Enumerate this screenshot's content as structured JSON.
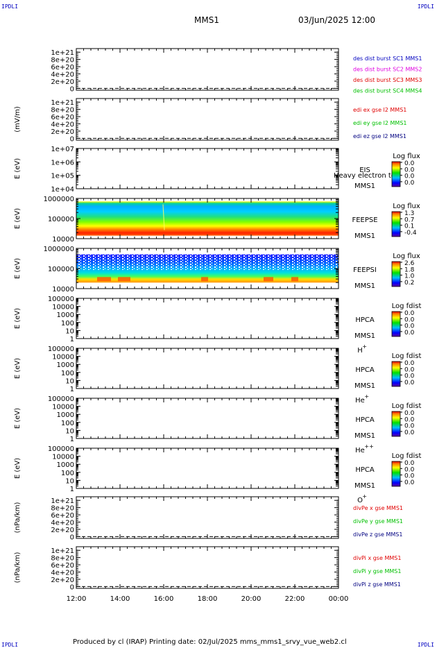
{
  "corners": {
    "tl": "IPDLI",
    "tr": "IPDLI",
    "bl": "IPDLI",
    "br": "IPDLI"
  },
  "header": {
    "spacecraft": "MMS1",
    "datetime": "03/Jun/2025 12:00"
  },
  "footer": {
    "text": "Produced by cl (IRAP)   Printing date: 02/Jul/2025   mms_mms1_srvy_vue_web2.cl"
  },
  "colors": {
    "blue": "#0000c0",
    "magenta": "#e000e0",
    "red": "#e00000",
    "green": "#00c000",
    "navy": "#000080"
  },
  "chart_data": {
    "type": "heatmap",
    "x_ticks": [
      "12:00",
      "14:00",
      "16:00",
      "18:00",
      "20:00",
      "22:00",
      "00:00"
    ],
    "panels": [
      {
        "id": "dist",
        "kind": "line",
        "ylabel": "",
        "yticks": [
          {
            "v": 0,
            "t": "0"
          },
          {
            "v": 0.2,
            "t": "2e+20"
          },
          {
            "v": 0.4,
            "t": "4e+20"
          },
          {
            "v": 0.6,
            "t": "6e+20"
          },
          {
            "v": 0.8,
            "t": "8e+20"
          },
          {
            "v": 1.0,
            "t": "1e+21"
          }
        ],
        "ylim": [
          -0.05,
          1.1
        ],
        "dashed_zero": true,
        "legend": [
          {
            "text": "des dist burst SC1 MMS1",
            "color": "#0000c0"
          },
          {
            "text": "des dist burst SC2 MMS2",
            "color": "#e000e0"
          },
          {
            "text": "des dist burst SC3 MMS3",
            "color": "#e00000"
          },
          {
            "text": "des dist burst SC4 MMS4",
            "color": "#00c000"
          }
        ]
      },
      {
        "id": "edi",
        "kind": "line",
        "ylabel": "(mV/m)",
        "yticks": [
          {
            "v": 0,
            "t": "0"
          },
          {
            "v": 0.2,
            "t": "2e+20"
          },
          {
            "v": 0.4,
            "t": "4e+20"
          },
          {
            "v": 0.6,
            "t": "6e+20"
          },
          {
            "v": 0.8,
            "t": "8e+20"
          },
          {
            "v": 1.0,
            "t": "1e+21"
          }
        ],
        "ylim": [
          -0.05,
          1.1
        ],
        "dashed_zero": true,
        "legend": [
          {
            "text": "edi ex gse l2 MMS1",
            "color": "#e00000"
          },
          {
            "text": "edi ey gse l2 MMS1",
            "color": "#00c000"
          },
          {
            "text": "edi ez gse l2 MMS1",
            "color": "#000080"
          }
        ]
      },
      {
        "id": "eis",
        "kind": "spec",
        "ylabel": "E (eV)",
        "yticks": [
          {
            "v": 4,
            "t": "1e+04"
          },
          {
            "v": 5,
            "t": "1e+05"
          },
          {
            "v": 6,
            "t": "1e+06"
          },
          {
            "v": 7,
            "t": "1e+07"
          }
        ],
        "ylim": [
          4,
          7
        ],
        "labels": [
          "EIS",
          "MMS1"
        ],
        "overlay": "Heavy electron to",
        "cbar_title": "Log flux",
        "cbar_ticks": [
          "0.0",
          "0.0",
          "0.0",
          "0.0"
        ]
      },
      {
        "id": "feepse",
        "kind": "spec",
        "ylabel": "E (eV)",
        "yticks": [
          {
            "v": 4,
            "t": "10000"
          },
          {
            "v": 5,
            "t": "100000"
          },
          {
            "v": 6,
            "t": "1000000"
          }
        ],
        "ylim": [
          4,
          6
        ],
        "labels": [
          "FEEPSE",
          "MMS1"
        ],
        "cbar_title": "Log flux",
        "cbar_ticks": [
          "1.3",
          "0.7",
          "0.1",
          "-0.4"
        ],
        "fill": "feepse"
      },
      {
        "id": "feepsi",
        "kind": "spec",
        "ylabel": "E (eV)",
        "yticks": [
          {
            "v": 4,
            "t": "10000"
          },
          {
            "v": 5,
            "t": "100000"
          },
          {
            "v": 6,
            "t": "1000000"
          }
        ],
        "ylim": [
          4,
          6
        ],
        "labels": [
          "FEEPSI",
          "MMS1"
        ],
        "cbar_title": "Log flux",
        "cbar_ticks": [
          "2.6",
          "1.8",
          "1.0",
          "0.2"
        ],
        "fill": "feepsi"
      },
      {
        "id": "hpca_h",
        "kind": "spec",
        "ylabel": "E (eV)",
        "yticks": [
          {
            "v": 0,
            "t": "1"
          },
          {
            "v": 1,
            "t": "10"
          },
          {
            "v": 2,
            "t": "100"
          },
          {
            "v": 3,
            "t": "1000"
          },
          {
            "v": 4,
            "t": "10000"
          },
          {
            "v": 5,
            "t": "100000"
          }
        ],
        "ylim": [
          0,
          5
        ],
        "labels": [
          "HPCA",
          "MMS1"
        ],
        "species": "H",
        "charge": "+",
        "cbar_title": "Log fdist",
        "cbar_ticks": [
          "0.0",
          "0.0",
          "0.0",
          "0.0"
        ]
      },
      {
        "id": "hpca_he",
        "kind": "spec",
        "ylabel": "E (eV)",
        "yticks": [
          {
            "v": 0,
            "t": "1"
          },
          {
            "v": 1,
            "t": "10"
          },
          {
            "v": 2,
            "t": "100"
          },
          {
            "v": 3,
            "t": "1000"
          },
          {
            "v": 4,
            "t": "10000"
          },
          {
            "v": 5,
            "t": "100000"
          }
        ],
        "ylim": [
          0,
          5
        ],
        "labels": [
          "HPCA",
          "MMS1"
        ],
        "species": "He",
        "charge": "+",
        "cbar_title": "Log fdist",
        "cbar_ticks": [
          "0.0",
          "0.0",
          "0.0",
          "0.0"
        ]
      },
      {
        "id": "hpca_he2",
        "kind": "spec",
        "ylabel": "E (eV)",
        "yticks": [
          {
            "v": 0,
            "t": "1"
          },
          {
            "v": 1,
            "t": "10"
          },
          {
            "v": 2,
            "t": "100"
          },
          {
            "v": 3,
            "t": "1000"
          },
          {
            "v": 4,
            "t": "10000"
          },
          {
            "v": 5,
            "t": "100000"
          }
        ],
        "ylim": [
          0,
          5
        ],
        "labels": [
          "HPCA",
          "MMS1"
        ],
        "species": "He",
        "charge": "++",
        "cbar_title": "Log fdist",
        "cbar_ticks": [
          "0.0",
          "0.0",
          "0.0",
          "0.0"
        ]
      },
      {
        "id": "hpca_o",
        "kind": "spec",
        "ylabel": "E (eV)",
        "yticks": [
          {
            "v": 0,
            "t": "1"
          },
          {
            "v": 1,
            "t": "10"
          },
          {
            "v": 2,
            "t": "100"
          },
          {
            "v": 3,
            "t": "1000"
          },
          {
            "v": 4,
            "t": "10000"
          },
          {
            "v": 5,
            "t": "100000"
          }
        ],
        "ylim": [
          0,
          5
        ],
        "labels": [
          "HPCA",
          "MMS1"
        ],
        "species": "O",
        "charge": "+",
        "cbar_title": "Log fdist",
        "cbar_ticks": [
          "0.0",
          "0.0",
          "0.0",
          "0.0"
        ]
      },
      {
        "id": "divpe",
        "kind": "line",
        "ylabel": "(nPa/km)",
        "yticks": [
          {
            "v": 0,
            "t": "0"
          },
          {
            "v": 0.2,
            "t": "2e+20"
          },
          {
            "v": 0.4,
            "t": "4e+20"
          },
          {
            "v": 0.6,
            "t": "6e+20"
          },
          {
            "v": 0.8,
            "t": "8e+20"
          },
          {
            "v": 1.0,
            "t": "1e+21"
          }
        ],
        "ylim": [
          -0.05,
          1.1
        ],
        "dashed_zero": true,
        "legend": [
          {
            "text": "divPe x gse MMS1",
            "color": "#e00000"
          },
          {
            "text": "divPe y gse MMS1",
            "color": "#00c000"
          },
          {
            "text": "divPe z gse MMS1",
            "color": "#000080"
          }
        ]
      },
      {
        "id": "divpi",
        "kind": "line",
        "ylabel": "(nPa/km)",
        "yticks": [
          {
            "v": 0,
            "t": "0"
          },
          {
            "v": 0.2,
            "t": "2e+20"
          },
          {
            "v": 0.4,
            "t": "4e+20"
          },
          {
            "v": 0.6,
            "t": "6e+20"
          },
          {
            "v": 0.8,
            "t": "8e+20"
          },
          {
            "v": 1.0,
            "t": "1e+21"
          }
        ],
        "ylim": [
          -0.05,
          1.1
        ],
        "dashed_zero": true,
        "legend": [
          {
            "text": "divPi x gse MMS1",
            "color": "#e00000"
          },
          {
            "text": "divPi y gse MMS1",
            "color": "#00c000"
          },
          {
            "text": "divPi z gse MMS1",
            "color": "#000080"
          }
        ]
      }
    ]
  }
}
